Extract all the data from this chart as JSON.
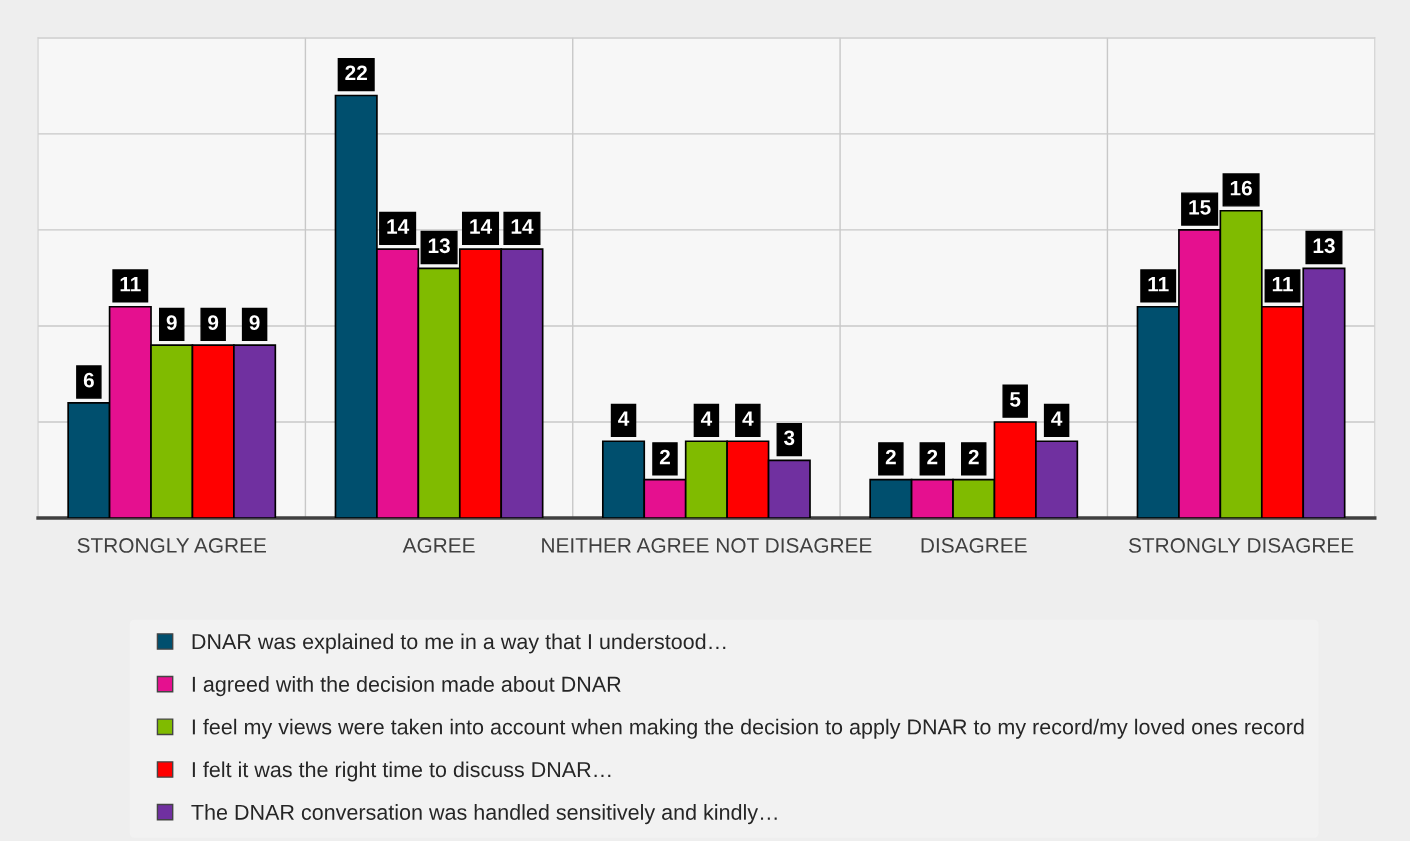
{
  "chart_data": {
    "type": "bar",
    "categories": [
      "STRONGLY AGREE",
      "AGREE",
      "NEITHER AGREE NOT DISAGREE",
      "DISAGREE",
      "STRONGLY DISAGREE"
    ],
    "series": [
      {
        "name": "DNAR was explained to me in a way that I understood…",
        "color": "#004f6e",
        "values": [
          6,
          22,
          4,
          2,
          11
        ]
      },
      {
        "name": "I agreed with the decision made about DNAR",
        "color": "#e5108f",
        "values": [
          11,
          14,
          2,
          2,
          15
        ]
      },
      {
        "name": "I feel my views were taken into account when making the decision to apply DNAR to my record/my loved ones record",
        "color": "#80bb00",
        "values": [
          9,
          13,
          4,
          2,
          16
        ]
      },
      {
        "name": "I felt it was the right time to discuss DNAR…",
        "color": "#ff0000",
        "values": [
          9,
          14,
          4,
          5,
          11
        ]
      },
      {
        "name": "The DNAR conversation was handled sensitively and kindly…",
        "color": "#7030a0",
        "values": [
          9,
          14,
          3,
          4,
          13
        ]
      }
    ],
    "ylim": [
      0,
      25
    ],
    "yticks": [
      {
        "value": 0,
        "label": null
      },
      {
        "value": 5,
        "label": null
      },
      {
        "value": 10,
        "label": null
      },
      {
        "value": 15,
        "label": null
      },
      {
        "value": 20,
        "label": null
      },
      {
        "value": 25,
        "label": null
      }
    ],
    "tick_labels": "x",
    "grid": true,
    "legend": "bottom",
    "data_labels": true
  }
}
